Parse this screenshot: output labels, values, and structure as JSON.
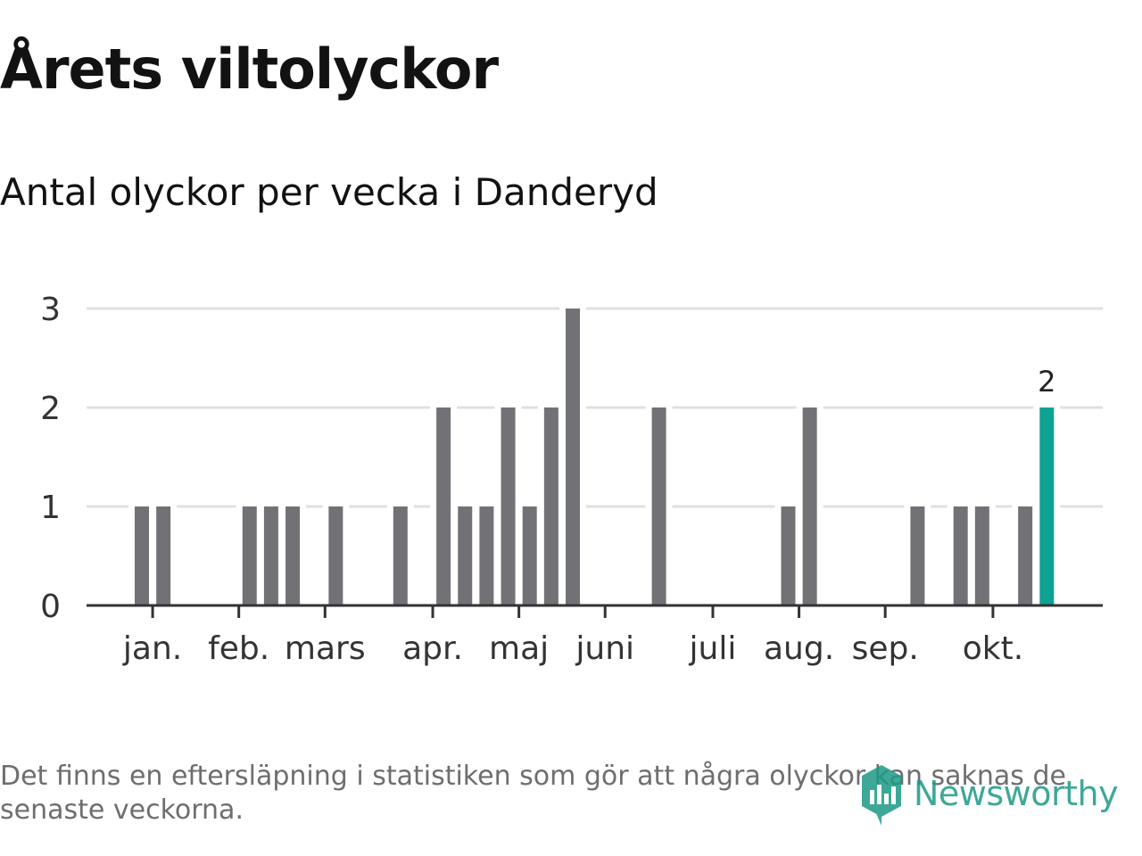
{
  "header": {
    "title": "Årets viltolyckor",
    "subtitle": "Antal olyckor per vecka i Danderyd"
  },
  "footer": {
    "note": "Det finns en eftersläpning i statistiken som gör att några olyckor kan saknas de senaste veckorna.",
    "brand": "Newsworthy"
  },
  "colors": {
    "bar": "#727176",
    "highlight": "#0ea294",
    "grid": "#e0e0e0",
    "axis": "#333333",
    "text": "#333333"
  },
  "chart_data": {
    "type": "bar",
    "title": "Årets viltolyckor",
    "subtitle": "Antal olyckor per vecka i Danderyd",
    "xlabel": "",
    "ylabel": "",
    "ylim": [
      0,
      3
    ],
    "yticks": [
      0,
      1,
      2,
      3
    ],
    "grid": true,
    "x_unit": "week",
    "weeks": [
      1,
      2,
      3,
      4,
      5,
      6,
      7,
      8,
      9,
      10,
      11,
      12,
      13,
      14,
      15,
      16,
      17,
      18,
      19,
      20,
      21,
      22,
      23,
      24,
      25,
      26,
      27,
      28,
      29,
      30,
      31,
      32,
      33,
      34,
      35,
      36,
      37,
      38,
      39,
      40,
      41,
      42,
      43
    ],
    "values": [
      1,
      1,
      0,
      0,
      0,
      1,
      1,
      1,
      0,
      1,
      0,
      0,
      1,
      0,
      2,
      1,
      1,
      2,
      1,
      2,
      3,
      0,
      0,
      0,
      2,
      0,
      0,
      0,
      0,
      0,
      1,
      2,
      0,
      0,
      0,
      0,
      1,
      0,
      1,
      1,
      0,
      1,
      2
    ],
    "highlight_index": 42,
    "highlight_label": "2",
    "month_ticks": [
      {
        "label": "jan.",
        "week": 1.5
      },
      {
        "label": "feb.",
        "week": 5.5
      },
      {
        "label": "mars",
        "week": 9.5
      },
      {
        "label": "apr.",
        "week": 14.5
      },
      {
        "label": "maj",
        "week": 18.5
      },
      {
        "label": "juni",
        "week": 22.5
      },
      {
        "label": "juli",
        "week": 27.5
      },
      {
        "label": "aug.",
        "week": 31.5
      },
      {
        "label": "sep.",
        "week": 35.5
      },
      {
        "label": "okt.",
        "week": 40.5
      }
    ]
  }
}
